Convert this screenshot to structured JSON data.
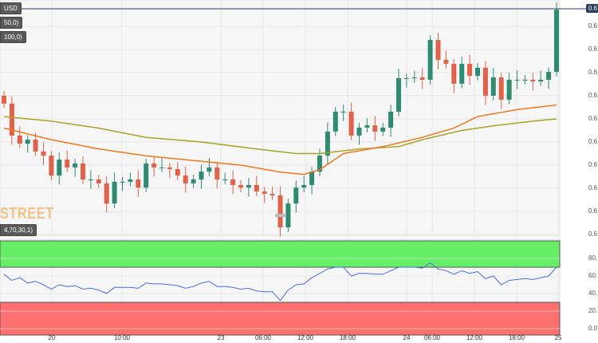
{
  "chart_data": {
    "type": "candlestick",
    "symbol_label": "USD",
    "indicator_labels": [
      "50,0)",
      "100,0)"
    ],
    "rsi_label": "4,70,30,1)",
    "watermark": "STREET",
    "price_tag": "0.6",
    "y_tick_labels": [
      "0.6",
      "0.6",
      "0.6",
      "0.6",
      "0.6",
      "0.6",
      "0.6",
      "0.6",
      "0.6",
      "0.6"
    ],
    "rsi_tick_labels": [
      "80.",
      "60.",
      "40.",
      "20.",
      "0.0"
    ],
    "rsi_ticks": [
      80,
      60,
      40,
      20,
      0
    ],
    "x_tick_labels": [
      "20",
      "10:00",
      "23",
      "06:00",
      "12:00",
      "18:00",
      "24",
      "06:00",
      "12:00",
      "18:00",
      "25"
    ],
    "first_open": 60,
    "closes": [
      56.6,
      42.8,
      39.3,
      41,
      35.9,
      34.1,
      25.5,
      32.4,
      29,
      30.7,
      23.8,
      23.8,
      22.1,
      13.4,
      22.8,
      22.8,
      23.8,
      20.3,
      30.7,
      29,
      29,
      28.3,
      25.5,
      22.1,
      23.8,
      27.2,
      29,
      23.8,
      23.8,
      21.4,
      20.3,
      21.4,
      18.6,
      17.6,
      16.9,
      3.1,
      13.4,
      20.3,
      21.4,
      27.2,
      34.1,
      44.5,
      53.1,
      53.1,
      42.8,
      46.2,
      47.2,
      44.5,
      46.2,
      53.1,
      67.6,
      67.6,
      67.9,
      66.9,
      84.1,
      75.5,
      73.8,
      65.2,
      73.8,
      68.6,
      72.1,
      60,
      67.9,
      58.3,
      66.9,
      66.9,
      66.9,
      66.2,
      66.9,
      70.3,
      97.2
    ],
    "ma50": [
      [
        0,
        46
      ],
      [
        6,
        41
      ],
      [
        12,
        37
      ],
      [
        18,
        34
      ],
      [
        24,
        32
      ],
      [
        30,
        30
      ],
      [
        35,
        27
      ],
      [
        38,
        26
      ],
      [
        40,
        28
      ],
      [
        43,
        35
      ],
      [
        48,
        38
      ],
      [
        53,
        42
      ],
      [
        57,
        46
      ],
      [
        60,
        51
      ],
      [
        65,
        54
      ],
      [
        70,
        56
      ]
    ],
    "ma100": [
      [
        0,
        51
      ],
      [
        6,
        49
      ],
      [
        12,
        46
      ],
      [
        18,
        42
      ],
      [
        25,
        40
      ],
      [
        32,
        37
      ],
      [
        37,
        35
      ],
      [
        40,
        35
      ],
      [
        45,
        37
      ],
      [
        50,
        38
      ],
      [
        53,
        41
      ],
      [
        58,
        45
      ],
      [
        62,
        47
      ],
      [
        67,
        49
      ],
      [
        70,
        50
      ]
    ],
    "rsi": [
      62,
      55,
      58,
      52,
      54,
      50,
      45,
      50,
      48,
      49,
      45,
      46,
      44,
      40,
      47,
      47,
      47,
      46,
      52,
      51,
      51,
      50,
      49,
      46,
      48,
      52,
      54,
      48,
      48,
      47,
      45,
      46,
      43,
      42,
      42,
      32,
      44,
      50,
      51,
      58,
      63,
      68,
      70,
      70,
      60,
      63,
      63,
      62,
      62,
      66,
      70,
      70,
      70,
      69,
      75,
      68,
      66,
      62,
      66,
      63,
      65,
      57,
      60,
      50,
      55,
      56,
      57,
      56,
      58,
      60,
      70
    ],
    "rsi_overbought": 70,
    "rsi_oversold": 30
  },
  "colors": {
    "up": "#2e8b72",
    "down": "#e0624a",
    "ma50": "#f07820",
    "ma100": "#a8a428",
    "rsi": "#4a6de0",
    "ob": "#66ee66",
    "os": "#ff7070"
  }
}
